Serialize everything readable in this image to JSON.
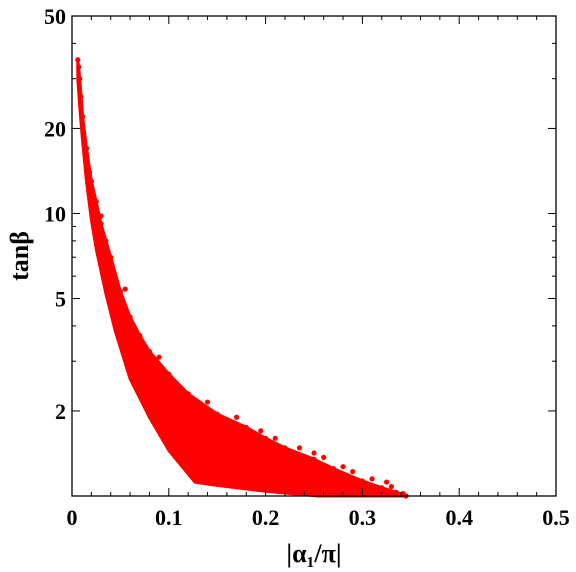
{
  "chart_data": {
    "type": "scatter",
    "title": "",
    "xlabel": "|α₁/π|",
    "ylabel": "tanβ",
    "xlim": [
      0,
      0.5
    ],
    "ylim": [
      1,
      50
    ],
    "y_scale": "log",
    "grid": false,
    "legend": "none",
    "x_ticks": [
      0,
      0.1,
      0.2,
      0.3,
      0.4,
      0.5
    ],
    "x_tick_labels": [
      "0",
      "0.1",
      "0.2",
      "0.3",
      "0.4",
      "0.5"
    ],
    "y_ticks": [
      2,
      5,
      10,
      20,
      50
    ],
    "y_tick_labels": [
      "2",
      "5",
      "10",
      "20",
      "50"
    ],
    "series": [
      {
        "color": "#ff0000",
        "region": {
          "upper_edge": [
            [
              0.006,
              35
            ],
            [
              0.008,
              30
            ],
            [
              0.011,
              22
            ],
            [
              0.015,
              17
            ],
            [
              0.02,
              13
            ],
            [
              0.025,
              11
            ],
            [
              0.03,
              9.2
            ],
            [
              0.035,
              8
            ],
            [
              0.04,
              7
            ],
            [
              0.05,
              5.3
            ],
            [
              0.06,
              4.3
            ],
            [
              0.07,
              3.7
            ],
            [
              0.08,
              3.25
            ],
            [
              0.1,
              2.7
            ],
            [
              0.12,
              2.3
            ],
            [
              0.15,
              1.95
            ],
            [
              0.18,
              1.75
            ],
            [
              0.2,
              1.6
            ],
            [
              0.22,
              1.48
            ],
            [
              0.25,
              1.35
            ],
            [
              0.27,
              1.25
            ],
            [
              0.3,
              1.13
            ],
            [
              0.32,
              1.07
            ],
            [
              0.335,
              1.03
            ],
            [
              0.345,
              1.0
            ]
          ],
          "lower_edge": [
            [
              0.255,
              1.0
            ],
            [
              0.2,
              1.04
            ],
            [
              0.15,
              1.09
            ],
            [
              0.127,
              1.12
            ],
            [
              0.1,
              1.45
            ],
            [
              0.08,
              1.9
            ],
            [
              0.06,
              2.6
            ],
            [
              0.045,
              3.8
            ],
            [
              0.035,
              5.2
            ],
            [
              0.025,
              7.5
            ],
            [
              0.02,
              9.5
            ],
            [
              0.015,
              13
            ],
            [
              0.011,
              18
            ],
            [
              0.008,
              24
            ],
            [
              0.006,
              30
            ]
          ]
        },
        "outliers": [
          [
            0.009,
            26
          ],
          [
            0.007,
            33
          ],
          [
            0.012,
            19
          ],
          [
            0.018,
            14
          ],
          [
            0.03,
            9.8
          ],
          [
            0.055,
            5.4
          ],
          [
            0.09,
            3.1
          ],
          [
            0.14,
            2.15
          ],
          [
            0.17,
            1.9
          ],
          [
            0.21,
            1.6
          ],
          [
            0.235,
            1.48
          ],
          [
            0.26,
            1.37
          ],
          [
            0.28,
            1.27
          ],
          [
            0.31,
            1.15
          ],
          [
            0.33,
            1.08
          ],
          [
            0.342,
            1.02
          ],
          [
            0.25,
            1.42
          ],
          [
            0.195,
            1.7
          ],
          [
            0.29,
            1.22
          ],
          [
            0.325,
            1.12
          ]
        ]
      }
    ]
  }
}
